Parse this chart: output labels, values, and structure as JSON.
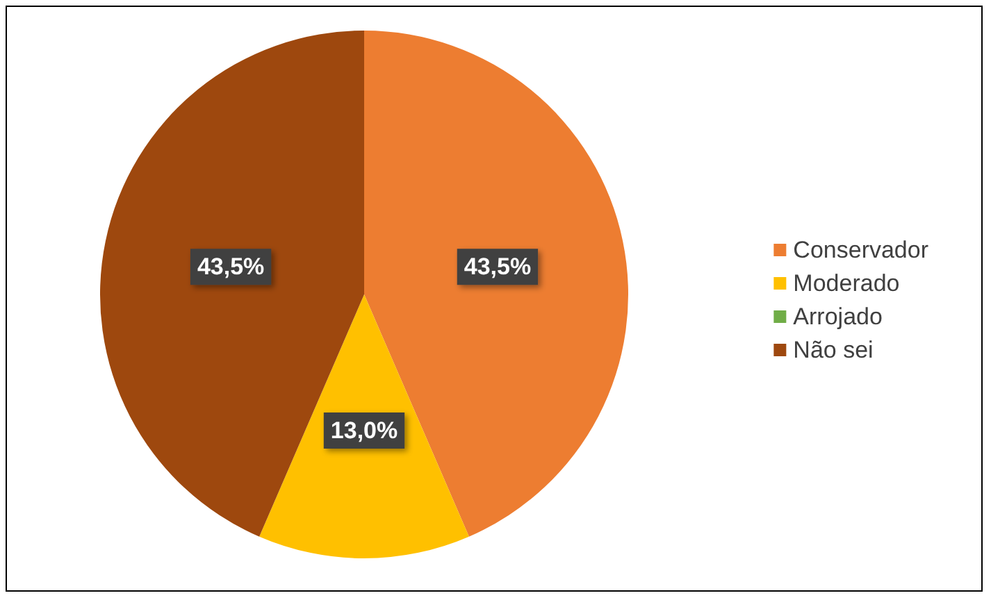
{
  "chart_data": {
    "type": "pie",
    "categories": [
      "Conservador",
      "Moderado",
      "Arrojado",
      "Não sei"
    ],
    "values": [
      43.5,
      13.0,
      0,
      43.5
    ],
    "colors": [
      "#ed7d31",
      "#ffc000",
      "#70ad47",
      "#9e480e"
    ],
    "value_labels": [
      "43,5%",
      "13,0%",
      null,
      "43,5%"
    ],
    "legend": "right"
  }
}
